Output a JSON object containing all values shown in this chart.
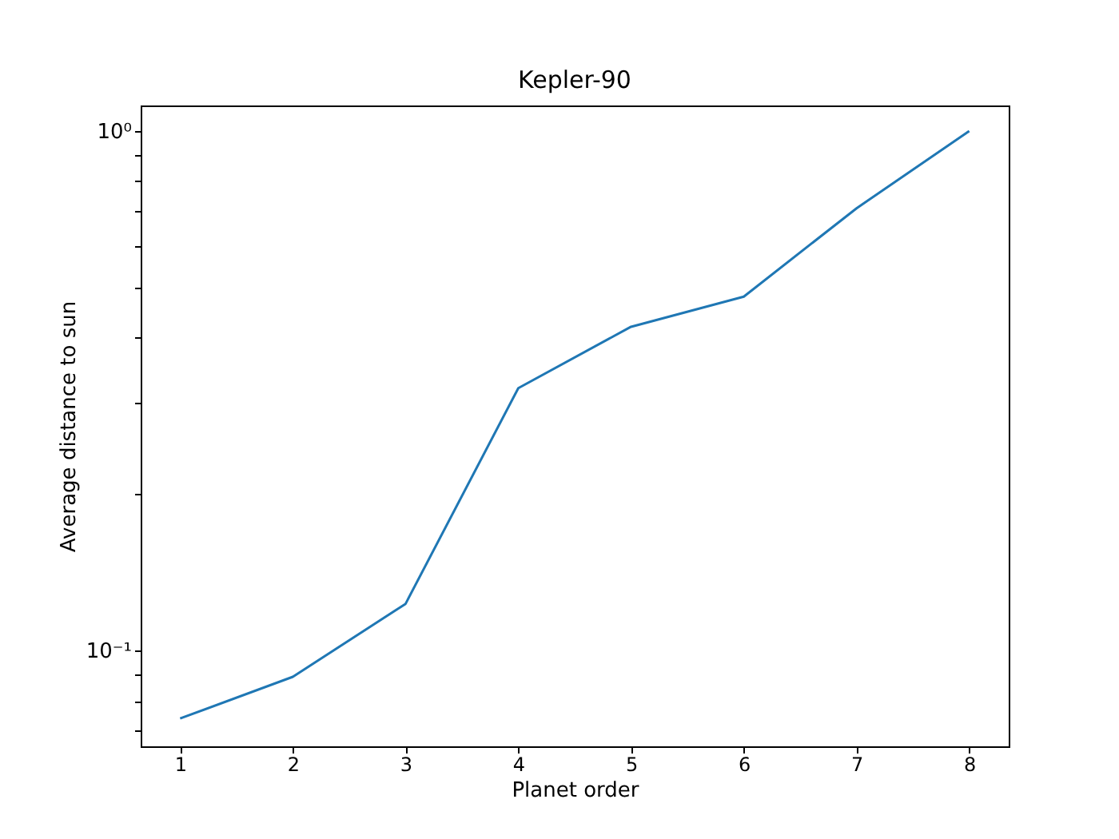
{
  "chart_data": {
    "type": "line",
    "title": "Kepler-90",
    "xlabel": "Planet order",
    "ylabel": "Average distance to sun",
    "x": [
      1,
      2,
      3,
      4,
      5,
      6,
      7,
      8
    ],
    "series": [
      {
        "color": "#1f77b4",
        "values": [
          0.074,
          0.089,
          0.123,
          0.32,
          0.42,
          0.48,
          0.71,
          1.0
        ]
      }
    ],
    "log": "y",
    "grid": false,
    "marker": "none",
    "line_style": "solid",
    "xlim": [
      0.65,
      8.35
    ],
    "xticks": [
      1,
      2,
      3,
      4,
      5,
      6,
      7,
      8
    ],
    "ylim": [
      0.0654,
      1.12
    ],
    "yticks": [
      {
        "value": 0.07,
        "label": null
      },
      {
        "value": 0.08,
        "label": null
      },
      {
        "value": 0.09,
        "label": null
      },
      {
        "value": 0.1,
        "label": "10⁻¹"
      },
      {
        "value": 0.2,
        "label": null
      },
      {
        "value": 0.3,
        "label": null
      },
      {
        "value": 0.4,
        "label": null
      },
      {
        "value": 0.5,
        "label": null
      },
      {
        "value": 0.6,
        "label": null
      },
      {
        "value": 0.7,
        "label": null
      },
      {
        "value": 0.8,
        "label": null
      },
      {
        "value": 0.9,
        "label": null
      },
      {
        "value": 1,
        "label": "10⁰"
      }
    ]
  }
}
